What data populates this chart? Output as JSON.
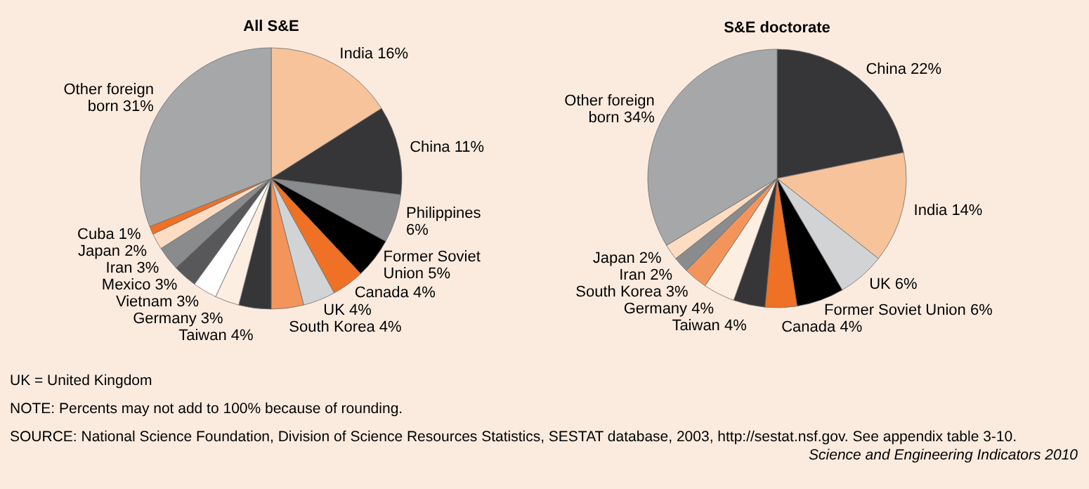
{
  "chart_data": [
    {
      "type": "pie",
      "title": "All S&E",
      "categories": [
        "India",
        "China",
        "Philippines",
        "Former Soviet Union",
        "Canada",
        "UK",
        "South Korea",
        "Taiwan",
        "Germany",
        "Vietnam",
        "Mexico",
        "Iran",
        "Japan",
        "Cuba",
        "Other foreign born"
      ],
      "values": [
        16,
        11,
        6,
        5,
        4,
        4,
        4,
        4,
        3,
        3,
        3,
        3,
        2,
        1,
        31
      ],
      "value_labels": [
        "16%",
        "11%",
        "6%",
        "5%",
        "4%",
        "4%",
        "4%",
        "4%",
        "3%",
        "3%",
        "3%",
        "3%",
        "2%",
        "1%",
        "31%"
      ],
      "colors": [
        "#f7c39b",
        "#363638",
        "#8a8b8d",
        "#000000",
        "#ef7125",
        "#d1d3d4",
        "#f3955a",
        "#363638",
        "#fdeee2",
        "#ffffff",
        "#58585a",
        "#8a8b8d",
        "#fddcc2",
        "#ef7125",
        "#a6a7a9"
      ],
      "annotations": [
        "UK = United Kingdom",
        "NOTE: Percents may not add to 100% because of rounding.",
        "SOURCE: National Science Foundation, Division of Science Resources Statistics, SESTAT database, 2003, http://sestat.nsf.gov. See appendix table 3-10.",
        "Science and Engineering Indicators 2010"
      ]
    },
    {
      "type": "pie",
      "title": "S&E doctorate",
      "categories": [
        "China",
        "India",
        "UK",
        "Former Soviet Union",
        "Canada",
        "Taiwan",
        "Germany",
        "South Korea",
        "Iran",
        "Japan",
        "Other foreign born"
      ],
      "values": [
        22,
        14,
        6,
        6,
        4,
        4,
        4,
        3,
        2,
        2,
        34
      ],
      "value_labels": [
        "22%",
        "14%",
        "6%",
        "6%",
        "4%",
        "4%",
        "4%",
        "3%",
        "2%",
        "2%",
        "34%"
      ],
      "colors": [
        "#363638",
        "#f7c39b",
        "#d1d3d4",
        "#000000",
        "#ef7125",
        "#363638",
        "#fdeee2",
        "#f3955a",
        "#8a8b8d",
        "#fddcc2",
        "#a6a7a9"
      ]
    }
  ]
}
